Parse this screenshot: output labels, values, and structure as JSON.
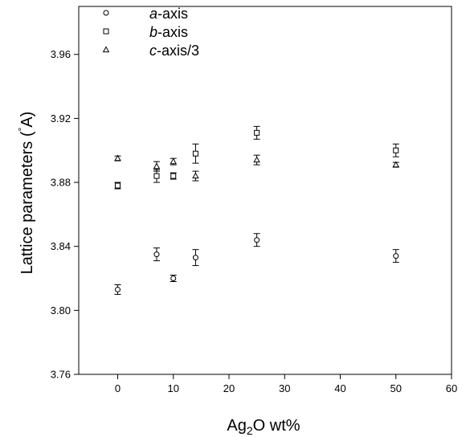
{
  "chart_data": {
    "type": "scatter",
    "title": "",
    "xlabel_parts": [
      "Ag",
      "2",
      "O wt%"
    ],
    "ylabel": "Lattice parameters (",
    "ylabel_unit": "A",
    "ylabel_unit_ring": "°",
    "ylabel_close": ")",
    "xlim": [
      -7,
      60
    ],
    "ylim": [
      3.76,
      3.99
    ],
    "xticks": [
      0,
      10,
      20,
      30,
      40,
      50,
      60
    ],
    "xtick_labels": [
      "0",
      "10",
      "20",
      "30",
      "40",
      "50",
      "60"
    ],
    "yticks": [
      3.76,
      3.8,
      3.84,
      3.88,
      3.92,
      3.96
    ],
    "ytick_labels": [
      "3.76",
      "3.80",
      "3.84",
      "3.88",
      "3.92",
      "3.96"
    ],
    "grid": false,
    "legend_position": "top-left",
    "series": [
      {
        "name_italic": "a",
        "name_rest": "-axis",
        "marker": "circle",
        "x": [
          0,
          7,
          10,
          14,
          25,
          50
        ],
        "y": [
          3.813,
          3.835,
          3.82,
          3.833,
          3.844,
          3.834
        ],
        "err": [
          0.003,
          0.004,
          0.002,
          0.005,
          0.004,
          0.004
        ]
      },
      {
        "name_italic": "b",
        "name_rest": "-axis",
        "marker": "square",
        "x": [
          0,
          7,
          10,
          14,
          25,
          50
        ],
        "y": [
          3.878,
          3.884,
          3.884,
          3.898,
          3.911,
          3.9
        ],
        "err": [
          0.002,
          0.004,
          0.002,
          0.006,
          0.004,
          0.004
        ]
      },
      {
        "name_italic": "c",
        "name_rest": "-axis/3",
        "marker": "triangle",
        "x": [
          0,
          7,
          10,
          14,
          25,
          50
        ],
        "y": [
          3.895,
          3.89,
          3.893,
          3.884,
          3.894,
          3.891
        ],
        "err": [
          0.0015,
          0.003,
          0.002,
          0.003,
          0.003,
          0.0015
        ]
      }
    ]
  }
}
